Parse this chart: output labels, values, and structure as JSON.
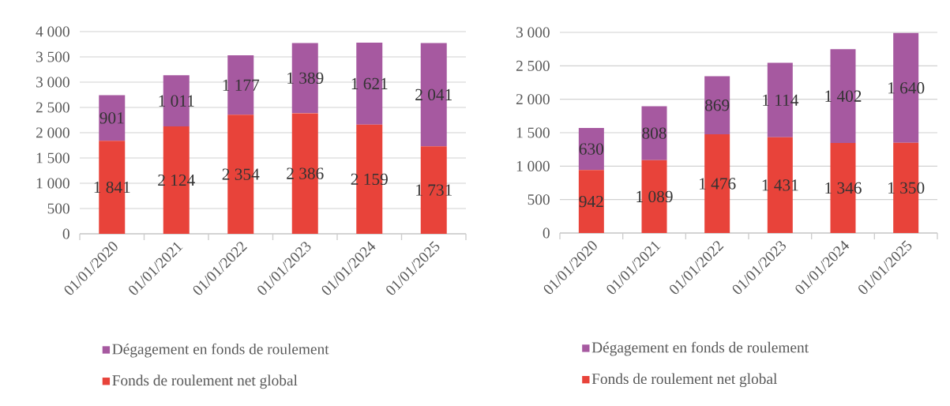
{
  "chart_data": [
    {
      "type": "bar",
      "stacked": true,
      "grid": "y",
      "legend": "bottom",
      "categories": [
        "01/01/2020",
        "01/01/2021",
        "01/01/2022",
        "01/01/2023",
        "01/01/2024",
        "01/01/2025"
      ],
      "series": [
        {
          "name": "Fonds de roulement net global",
          "color": "#e8433a",
          "values": [
            1841,
            2124,
            2354,
            2386,
            2159,
            1731
          ],
          "value_labels": [
            "1 841",
            "2 124",
            "2 354",
            "2 386",
            "2 159",
            "1 731"
          ]
        },
        {
          "name": "Dégagement en fonds de roulement",
          "color": "#a659a0",
          "values": [
            901,
            1011,
            1177,
            1389,
            1621,
            2041
          ],
          "value_labels": [
            "901",
            "1 011",
            "1 177",
            "1 389",
            "1 621",
            "2 041"
          ]
        }
      ],
      "ylim": [
        0,
        4000
      ],
      "yticks": [
        0,
        500,
        {
          "value": 1000,
          "label": "1 000"
        },
        {
          "value": 1500,
          "label": "1 500"
        },
        {
          "value": 2000,
          "label": "2 000"
        },
        {
          "value": 2500,
          "label": "2 500"
        },
        {
          "value": 3000,
          "label": "3 000"
        },
        {
          "value": 3500,
          "label": "3 500"
        },
        {
          "value": 4000,
          "label": "4 000"
        }
      ]
    },
    {
      "type": "bar",
      "stacked": true,
      "grid": "y",
      "legend": "bottom",
      "categories": [
        "01/01/2020",
        "01/01/2021",
        "01/01/2022",
        "01/01/2023",
        "01/01/2024",
        "01/01/2025"
      ],
      "series": [
        {
          "name": "Fonds de roulement net global",
          "color": "#e8433a",
          "values": [
            942,
            1089,
            1476,
            1431,
            1346,
            1350
          ],
          "value_labels": [
            "942",
            "1 089",
            "1 476",
            "1 431",
            "1 346",
            "1 350"
          ]
        },
        {
          "name": "Dégagement en fonds de roulement",
          "color": "#a659a0",
          "values": [
            630,
            808,
            869,
            1114,
            1402,
            1640
          ],
          "value_labels": [
            "630",
            "808",
            "869",
            "1 114",
            "1 402",
            "1 640"
          ]
        }
      ],
      "ylim": [
        0,
        3000
      ],
      "yticks": [
        0,
        500,
        {
          "value": 1000,
          "label": "1 000"
        },
        {
          "value": 1500,
          "label": "1 500"
        },
        {
          "value": 2000,
          "label": "2 000"
        },
        {
          "value": 2500,
          "label": "2 500"
        },
        {
          "value": 3000,
          "label": "3 000"
        }
      ]
    }
  ]
}
